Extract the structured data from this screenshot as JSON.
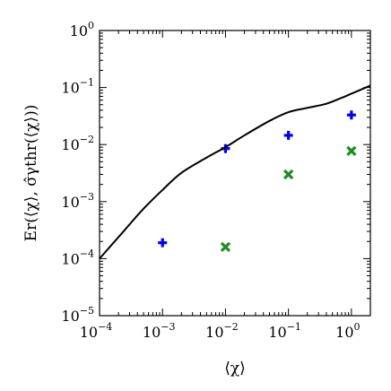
{
  "chart_data": {
    "type": "scatter",
    "x_scale": "log",
    "y_scale": "log",
    "xlim": [
      0.0001,
      2
    ],
    "ylim": [
      1e-05,
      1
    ],
    "xlabel": "⟨χ⟩",
    "ylabel": "Er(⟨χ⟩, σ̂γthr(⟨χ⟩))",
    "x_ticks": [
      {
        "value": 0.0001,
        "base": "10",
        "exp": "−4"
      },
      {
        "value": 0.001,
        "base": "10",
        "exp": "−3"
      },
      {
        "value": 0.01,
        "base": "10",
        "exp": "−2"
      },
      {
        "value": 0.1,
        "base": "10",
        "exp": "−1"
      },
      {
        "value": 1,
        "base": "10",
        "exp": "0"
      }
    ],
    "y_ticks": [
      {
        "value": 1e-05,
        "base": "10",
        "exp": "−5"
      },
      {
        "value": 0.0001,
        "base": "10",
        "exp": "−4"
      },
      {
        "value": 0.001,
        "base": "10",
        "exp": "−3"
      },
      {
        "value": 0.01,
        "base": "10",
        "exp": "−2"
      },
      {
        "value": 0.1,
        "base": "10",
        "exp": "−1"
      },
      {
        "value": 1,
        "base": "10",
        "exp": "0"
      }
    ],
    "series": [
      {
        "marker": "plus",
        "color": "#0000ee",
        "points": [
          {
            "x": 0.001,
            "y": 0.00019
          },
          {
            "x": 0.01,
            "y": 0.0085
          },
          {
            "x": 0.1,
            "y": 0.0145
          },
          {
            "x": 1,
            "y": 0.033
          }
        ]
      },
      {
        "marker": "x",
        "color": "#1e8c1e",
        "points": [
          {
            "x": 0.01,
            "y": 0.00016
          },
          {
            "x": 0.1,
            "y": 0.003
          },
          {
            "x": 1,
            "y": 0.0077
          }
        ]
      },
      {
        "marker": "line",
        "color": "#000000",
        "points": [
          {
            "x": 0.0001,
            "y": 0.0001
          },
          {
            "x": 0.00024,
            "y": 0.0003
          },
          {
            "x": 0.0005,
            "y": 0.00075
          },
          {
            "x": 0.001,
            "y": 0.0016
          },
          {
            "x": 0.002,
            "y": 0.0032
          },
          {
            "x": 0.005,
            "y": 0.0059
          },
          {
            "x": 0.01,
            "y": 0.009
          },
          {
            "x": 0.02,
            "y": 0.0145
          },
          {
            "x": 0.05,
            "y": 0.026
          },
          {
            "x": 0.1,
            "y": 0.037
          },
          {
            "x": 0.2,
            "y": 0.044
          },
          {
            "x": 0.4,
            "y": 0.052
          },
          {
            "x": 0.7,
            "y": 0.066
          },
          {
            "x": 1,
            "y": 0.078
          },
          {
            "x": 2,
            "y": 0.108
          }
        ]
      }
    ]
  }
}
